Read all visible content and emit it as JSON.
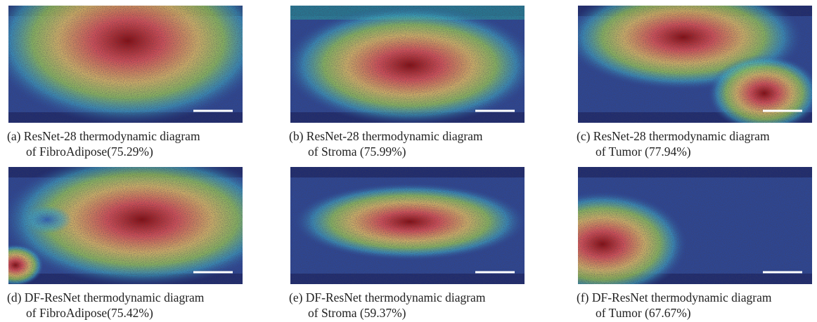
{
  "panels": [
    {
      "caption": [
        "(a) ResNet-28 thermodynamic diagram",
        "of FibroAdipose(75.29%)"
      ]
    },
    {
      "caption": [
        "(b) ResNet-28 thermodynamic diagram",
        "of Stroma (75.99%)"
      ]
    },
    {
      "caption": [
        "(c) ResNet-28 thermodynamic diagram",
        "of Tumor (77.94%)"
      ]
    },
    {
      "caption": [
        "(d) DF-ResNet thermodynamic diagram",
        "of FibroAdipose(75.42%)"
      ]
    },
    {
      "caption": [
        "(e) DF-ResNet thermodynamic diagram",
        "of Stroma (59.37%)"
      ]
    },
    {
      "caption": [
        "(f) DF-ResNet thermodynamic diagram",
        "of Tumor (67.67%)"
      ]
    }
  ]
}
